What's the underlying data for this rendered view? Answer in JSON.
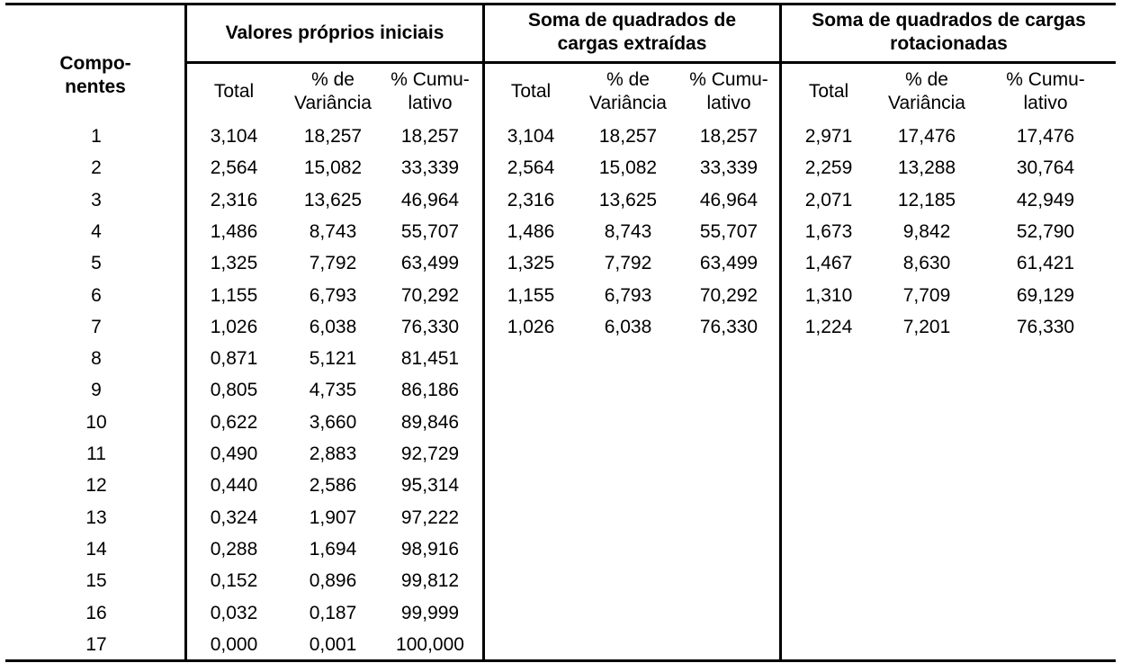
{
  "table": {
    "caption_partial": "",
    "row_header_label": [
      "Compo-",
      "nentes"
    ],
    "groups": [
      {
        "title_lines": [
          "Valores próprios iniciais"
        ]
      },
      {
        "title_lines": [
          "Soma de quadrados de",
          "cargas extraídas"
        ]
      },
      {
        "title_lines": [
          "Soma de quadrados de cargas",
          "rotacionadas"
        ]
      }
    ],
    "subheaders": [
      {
        "lines": [
          "Total"
        ]
      },
      {
        "lines": [
          "% de",
          "Variância"
        ]
      },
      {
        "lines": [
          "% Cumu-",
          "lativo"
        ]
      }
    ],
    "rows": [
      {
        "comp": "1",
        "init": [
          "3,104",
          "18,257",
          "18,257"
        ],
        "extr": [
          "3,104",
          "18,257",
          "18,257"
        ],
        "rot": [
          "2,971",
          "17,476",
          "17,476"
        ]
      },
      {
        "comp": "2",
        "init": [
          "2,564",
          "15,082",
          "33,339"
        ],
        "extr": [
          "2,564",
          "15,082",
          "33,339"
        ],
        "rot": [
          "2,259",
          "13,288",
          "30,764"
        ]
      },
      {
        "comp": "3",
        "init": [
          "2,316",
          "13,625",
          "46,964"
        ],
        "extr": [
          "2,316",
          "13,625",
          "46,964"
        ],
        "rot": [
          "2,071",
          "12,185",
          "42,949"
        ]
      },
      {
        "comp": "4",
        "init": [
          "1,486",
          "8,743",
          "55,707"
        ],
        "extr": [
          "1,486",
          "8,743",
          "55,707"
        ],
        "rot": [
          "1,673",
          "9,842",
          "52,790"
        ]
      },
      {
        "comp": "5",
        "init": [
          "1,325",
          "7,792",
          "63,499"
        ],
        "extr": [
          "1,325",
          "7,792",
          "63,499"
        ],
        "rot": [
          "1,467",
          "8,630",
          "61,421"
        ]
      },
      {
        "comp": "6",
        "init": [
          "1,155",
          "6,793",
          "70,292"
        ],
        "extr": [
          "1,155",
          "6,793",
          "70,292"
        ],
        "rot": [
          "1,310",
          "7,709",
          "69,129"
        ]
      },
      {
        "comp": "7",
        "init": [
          "1,026",
          "6,038",
          "76,330"
        ],
        "extr": [
          "1,026",
          "6,038",
          "76,330"
        ],
        "rot": [
          "1,224",
          "7,201",
          "76,330"
        ]
      },
      {
        "comp": "8",
        "init": [
          "0,871",
          "5,121",
          "81,451"
        ],
        "extr": [
          "",
          "",
          ""
        ],
        "rot": [
          "",
          "",
          ""
        ]
      },
      {
        "comp": "9",
        "init": [
          "0,805",
          "4,735",
          "86,186"
        ],
        "extr": [
          "",
          "",
          ""
        ],
        "rot": [
          "",
          "",
          ""
        ]
      },
      {
        "comp": "10",
        "init": [
          "0,622",
          "3,660",
          "89,846"
        ],
        "extr": [
          "",
          "",
          ""
        ],
        "rot": [
          "",
          "",
          ""
        ]
      },
      {
        "comp": "11",
        "init": [
          "0,490",
          "2,883",
          "92,729"
        ],
        "extr": [
          "",
          "",
          ""
        ],
        "rot": [
          "",
          "",
          ""
        ]
      },
      {
        "comp": "12",
        "init": [
          "0,440",
          "2,586",
          "95,314"
        ],
        "extr": [
          "",
          "",
          ""
        ],
        "rot": [
          "",
          "",
          ""
        ]
      },
      {
        "comp": "13",
        "init": [
          "0,324",
          "1,907",
          "97,222"
        ],
        "extr": [
          "",
          "",
          ""
        ],
        "rot": [
          "",
          "",
          ""
        ]
      },
      {
        "comp": "14",
        "init": [
          "0,288",
          "1,694",
          "98,916"
        ],
        "extr": [
          "",
          "",
          ""
        ],
        "rot": [
          "",
          "",
          ""
        ]
      },
      {
        "comp": "15",
        "init": [
          "0,152",
          "0,896",
          "99,812"
        ],
        "extr": [
          "",
          "",
          ""
        ],
        "rot": [
          "",
          "",
          ""
        ]
      },
      {
        "comp": "16",
        "init": [
          "0,032",
          "0,187",
          "99,999"
        ],
        "extr": [
          "",
          "",
          ""
        ],
        "rot": [
          "",
          "",
          ""
        ]
      },
      {
        "comp": "17",
        "init": [
          "0,000",
          "0,001",
          "100,000"
        ],
        "extr": [
          "",
          "",
          ""
        ],
        "rot": [
          "",
          "",
          ""
        ]
      }
    ]
  }
}
